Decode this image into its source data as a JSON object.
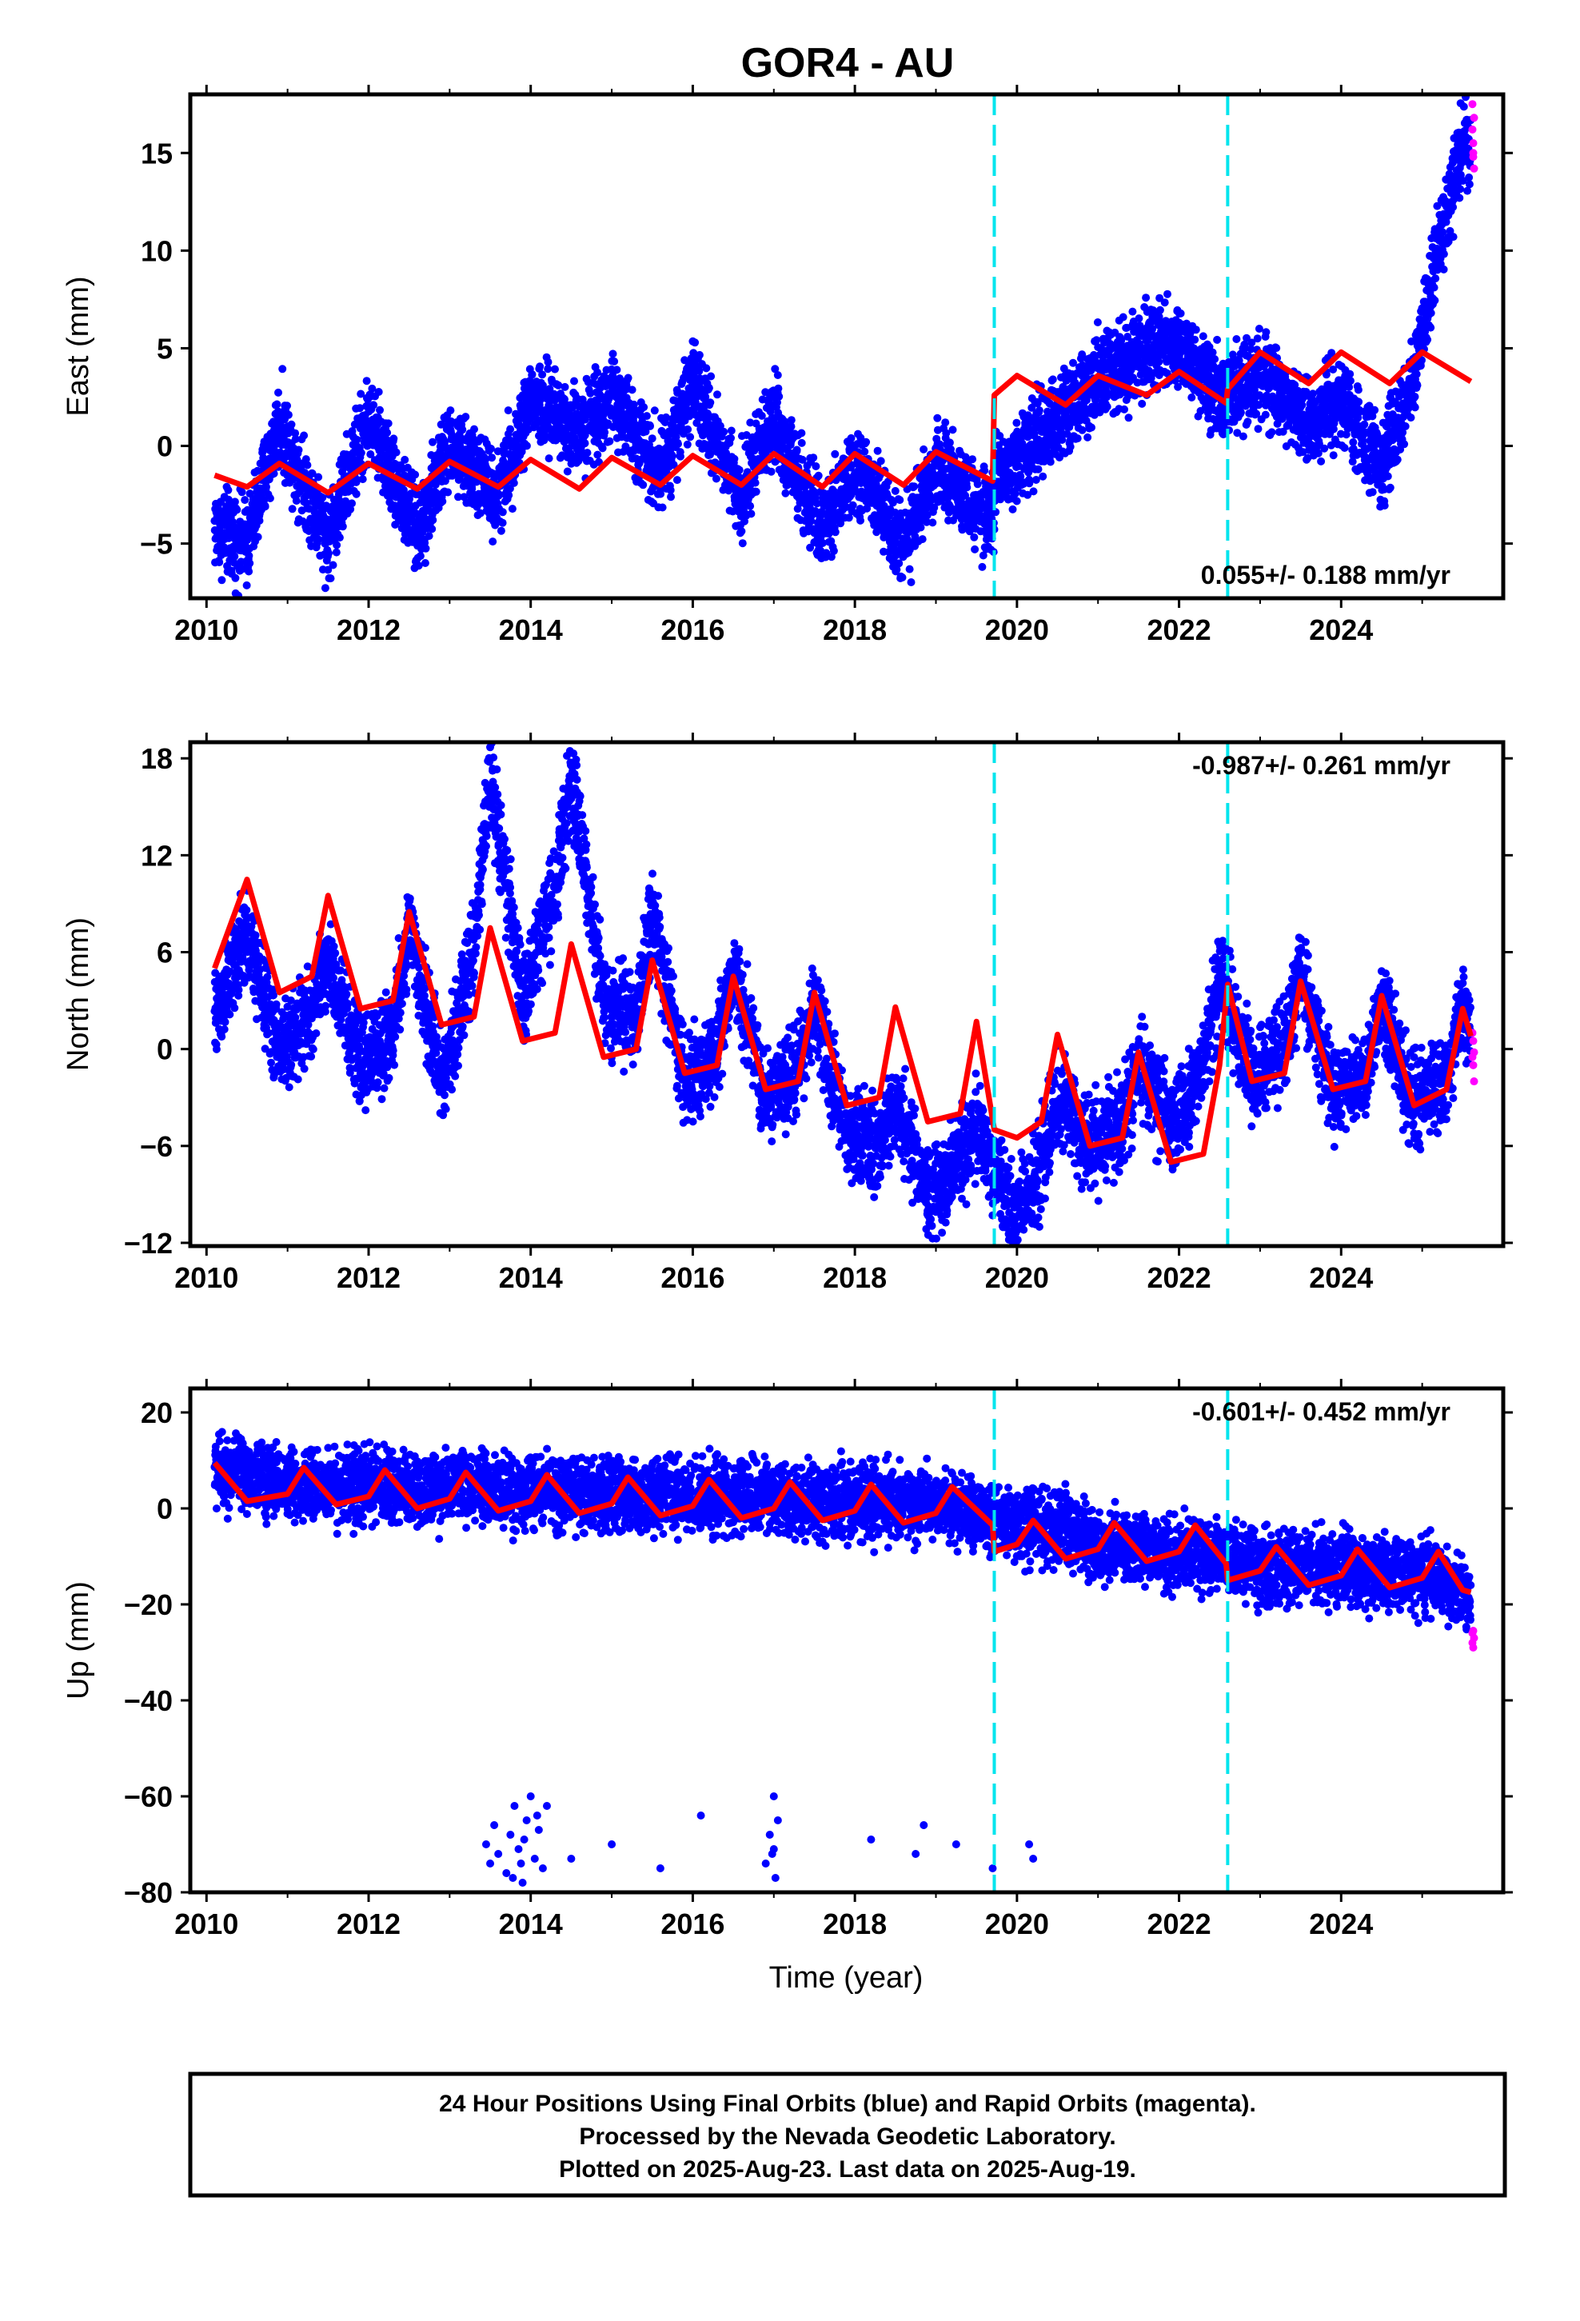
{
  "title": "GOR4 - AU",
  "xlabel": "Time (year)",
  "footer": {
    "line1": "24 Hour Positions Using Final Orbits (blue) and Rapid Orbits (magenta).",
    "line2": "Processed by the Nevada Geodetic Laboratory.",
    "line3": "Plotted on 2025-Aug-23. Last data on 2025-Aug-19."
  },
  "colors": {
    "final": "#0000ff",
    "rapid": "#ff00ff",
    "model": "#ff0000",
    "steps": "#00e5ee"
  },
  "chart_data": [
    {
      "type": "scatter",
      "ylabel": "East (mm)",
      "xlim": [
        2009.8,
        2026.0
      ],
      "ylim": [
        -7.8,
        18.0
      ],
      "xticks": [
        "2010",
        "2012",
        "2014",
        "2016",
        "2018",
        "2020",
        "2022",
        "2024"
      ],
      "yticks": [
        "−5",
        "0",
        "5",
        "10",
        "15"
      ],
      "rate_text": "0.055+/- 0.188 mm/yr",
      "rate_position": "bottom-right",
      "steps": [
        2019.72,
        2022.6
      ],
      "model": {
        "name": "model",
        "points": [
          [
            2010.1,
            -1.5
          ],
          [
            2010.5,
            -2.1
          ],
          [
            2010.9,
            -0.9
          ],
          [
            2011.5,
            -2.4
          ],
          [
            2012.0,
            -0.9
          ],
          [
            2012.6,
            -2.2
          ],
          [
            2013.0,
            -0.8
          ],
          [
            2013.6,
            -2.1
          ],
          [
            2014.0,
            -0.7
          ],
          [
            2014.6,
            -2.2
          ],
          [
            2015.0,
            -0.6
          ],
          [
            2015.6,
            -2.0
          ],
          [
            2016.0,
            -0.5
          ],
          [
            2016.6,
            -2.0
          ],
          [
            2017.0,
            -0.4
          ],
          [
            2017.6,
            -2.1
          ],
          [
            2018.0,
            -0.4
          ],
          [
            2018.6,
            -2.0
          ],
          [
            2019.0,
            -0.3
          ],
          [
            2019.7,
            -1.8
          ],
          [
            2019.72,
            2.6
          ],
          [
            2020.0,
            3.6
          ],
          [
            2020.6,
            2.1
          ],
          [
            2021.0,
            3.6
          ],
          [
            2021.6,
            2.6
          ],
          [
            2022.0,
            3.8
          ],
          [
            2022.58,
            2.2
          ],
          [
            2022.6,
            2.9
          ],
          [
            2023.0,
            4.8
          ],
          [
            2023.6,
            3.2
          ],
          [
            2024.0,
            4.8
          ],
          [
            2024.6,
            3.2
          ],
          [
            2025.0,
            4.8
          ],
          [
            2025.6,
            3.3
          ]
        ]
      },
      "final_envelope": [
        [
          2010.1,
          -4.2
        ],
        [
          2010.5,
          -5.0
        ],
        [
          2010.9,
          1.2
        ],
        [
          2011.5,
          -4.8
        ],
        [
          2012.0,
          1.5
        ],
        [
          2012.6,
          -4.5
        ],
        [
          2013.0,
          0.0
        ],
        [
          2013.6,
          -2.5
        ],
        [
          2014.0,
          2.3
        ],
        [
          2014.6,
          0.8
        ],
        [
          2015.0,
          2.5
        ],
        [
          2015.6,
          -1.2
        ],
        [
          2016.0,
          3.0
        ],
        [
          2016.6,
          -2.5
        ],
        [
          2017.0,
          1.5
        ],
        [
          2017.6,
          -4.5
        ],
        [
          2018.0,
          -1.0
        ],
        [
          2018.6,
          -5.0
        ],
        [
          2019.0,
          -1.0
        ],
        [
          2019.7,
          -4.0
        ],
        [
          2019.75,
          -1.5
        ],
        [
          2020.5,
          1.5
        ],
        [
          2021.0,
          3.5
        ],
        [
          2021.5,
          4.8
        ],
        [
          2022.0,
          5.2
        ],
        [
          2022.5,
          2.5
        ],
        [
          2023.0,
          3.5
        ],
        [
          2023.6,
          1.0
        ],
        [
          2024.0,
          2.5
        ],
        [
          2024.5,
          -1.2
        ],
        [
          2024.9,
          3.5
        ],
        [
          2025.2,
          10.0
        ],
        [
          2025.5,
          15.5
        ],
        [
          2025.6,
          15.0
        ]
      ],
      "final_spread": 2.0,
      "rapid": [
        [
          2025.62,
          17.5
        ],
        [
          2025.62,
          16.2
        ],
        [
          2025.63,
          15.5
        ],
        [
          2025.63,
          14.8
        ],
        [
          2025.64,
          14.2
        ],
        [
          2025.64,
          16.8
        ],
        [
          2025.63,
          15.0
        ]
      ]
    },
    {
      "type": "scatter",
      "ylabel": "North (mm)",
      "xlim": [
        2009.8,
        2026.0
      ],
      "ylim": [
        -12.2,
        19.0
      ],
      "xticks": [
        "2010",
        "2012",
        "2014",
        "2016",
        "2018",
        "2020",
        "2022",
        "2024"
      ],
      "yticks": [
        "−12",
        "−6",
        "0",
        "6",
        "12",
        "18"
      ],
      "rate_text": "-0.987+/- 0.261 mm/yr",
      "rate_position": "top-right",
      "steps": [
        2019.72,
        2022.6
      ],
      "model": {
        "name": "model",
        "points": [
          [
            2010.1,
            5.0
          ],
          [
            2010.5,
            10.5
          ],
          [
            2010.9,
            3.5
          ],
          [
            2011.3,
            4.5
          ],
          [
            2011.5,
            9.5
          ],
          [
            2011.9,
            2.5
          ],
          [
            2012.3,
            3.0
          ],
          [
            2012.5,
            8.5
          ],
          [
            2012.9,
            1.5
          ],
          [
            2013.3,
            2.0
          ],
          [
            2013.5,
            7.5
          ],
          [
            2013.9,
            0.5
          ],
          [
            2014.3,
            1.0
          ],
          [
            2014.5,
            6.5
          ],
          [
            2014.9,
            -0.5
          ],
          [
            2015.3,
            0.0
          ],
          [
            2015.5,
            5.5
          ],
          [
            2015.9,
            -1.5
          ],
          [
            2016.3,
            -1.0
          ],
          [
            2016.5,
            4.5
          ],
          [
            2016.9,
            -2.5
          ],
          [
            2017.3,
            -2.0
          ],
          [
            2017.5,
            3.5
          ],
          [
            2017.9,
            -3.5
          ],
          [
            2018.3,
            -3.0
          ],
          [
            2018.5,
            2.6
          ],
          [
            2018.9,
            -4.5
          ],
          [
            2019.3,
            -4.0
          ],
          [
            2019.5,
            1.7
          ],
          [
            2019.72,
            -5.0
          ],
          [
            2020.0,
            -5.5
          ],
          [
            2020.3,
            -4.5
          ],
          [
            2020.5,
            0.9
          ],
          [
            2020.9,
            -6.0
          ],
          [
            2021.3,
            -5.5
          ],
          [
            2021.5,
            -0.2
          ],
          [
            2021.9,
            -7.0
          ],
          [
            2022.3,
            -6.5
          ],
          [
            2022.5,
            -1.0
          ],
          [
            2022.6,
            4.0
          ],
          [
            2022.9,
            -2.0
          ],
          [
            2023.3,
            -1.5
          ],
          [
            2023.5,
            4.2
          ],
          [
            2023.9,
            -2.5
          ],
          [
            2024.3,
            -2.0
          ],
          [
            2024.5,
            3.3
          ],
          [
            2024.9,
            -3.5
          ],
          [
            2025.3,
            -2.5
          ],
          [
            2025.5,
            2.5
          ],
          [
            2025.6,
            0.8
          ]
        ]
      },
      "final_envelope": [
        [
          2010.1,
          2.0
        ],
        [
          2010.5,
          7.0
        ],
        [
          2010.9,
          0.0
        ],
        [
          2011.3,
          2.0
        ],
        [
          2011.5,
          5.5
        ],
        [
          2011.9,
          -1.0
        ],
        [
          2012.3,
          1.0
        ],
        [
          2012.5,
          7.5
        ],
        [
          2012.9,
          -2.0
        ],
        [
          2013.3,
          6.0
        ],
        [
          2013.5,
          17.0
        ],
        [
          2013.9,
          3.0
        ],
        [
          2014.3,
          10.0
        ],
        [
          2014.5,
          17.0
        ],
        [
          2014.9,
          3.0
        ],
        [
          2015.3,
          2.0
        ],
        [
          2015.5,
          8.5
        ],
        [
          2015.9,
          -2.0
        ],
        [
          2016.3,
          0.0
        ],
        [
          2016.5,
          5.0
        ],
        [
          2016.9,
          -3.0
        ],
        [
          2017.3,
          -1.5
        ],
        [
          2017.5,
          2.5
        ],
        [
          2017.9,
          -5.0
        ],
        [
          2018.3,
          -6.5
        ],
        [
          2018.5,
          -3.0
        ],
        [
          2018.9,
          -9.0
        ],
        [
          2019.3,
          -7.0
        ],
        [
          2019.5,
          -5.0
        ],
        [
          2020.0,
          -10.5
        ],
        [
          2020.3,
          -7.0
        ],
        [
          2020.5,
          -3.0
        ],
        [
          2020.9,
          -6.0
        ],
        [
          2021.3,
          -4.5
        ],
        [
          2021.5,
          -1.0
        ],
        [
          2021.9,
          -5.0
        ],
        [
          2022.3,
          -1.0
        ],
        [
          2022.5,
          4.5
        ],
        [
          2022.9,
          -1.5
        ],
        [
          2023.3,
          0.0
        ],
        [
          2023.5,
          4.5
        ],
        [
          2023.9,
          -2.5
        ],
        [
          2024.3,
          -2.0
        ],
        [
          2024.5,
          3.0
        ],
        [
          2024.9,
          -3.5
        ],
        [
          2025.3,
          -2.0
        ],
        [
          2025.5,
          3.0
        ],
        [
          2025.6,
          1.0
        ]
      ],
      "final_spread": 2.6,
      "rapid": [
        [
          2025.62,
          1.0
        ],
        [
          2025.62,
          -0.5
        ],
        [
          2025.63,
          -1.0
        ],
        [
          2025.64,
          -2.0
        ],
        [
          2025.64,
          -0.2
        ],
        [
          2025.63,
          0.5
        ]
      ]
    },
    {
      "type": "scatter",
      "ylabel": "Up (mm)",
      "xlim": [
        2009.8,
        2026.0
      ],
      "ylim": [
        -80,
        25
      ],
      "xticks": [
        "2010",
        "2012",
        "2014",
        "2016",
        "2018",
        "2020",
        "2022",
        "2024"
      ],
      "yticks": [
        "−80",
        "−60",
        "−40",
        "−20",
        "0",
        "20"
      ],
      "rate_text": "-0.601+/- 0.452 mm/yr",
      "rate_position": "top-right",
      "steps": [
        2019.72,
        2022.6
      ],
      "model": {
        "name": "model",
        "points": [
          [
            2010.1,
            9.5
          ],
          [
            2010.5,
            1.5
          ],
          [
            2011.0,
            3.0
          ],
          [
            2011.2,
            8.5
          ],
          [
            2011.6,
            0.8
          ],
          [
            2012.0,
            2.5
          ],
          [
            2012.2,
            8.0
          ],
          [
            2012.6,
            0.0
          ],
          [
            2013.0,
            2.0
          ],
          [
            2013.2,
            7.5
          ],
          [
            2013.6,
            -0.5
          ],
          [
            2014.0,
            1.5
          ],
          [
            2014.2,
            7.0
          ],
          [
            2014.6,
            -1.0
          ],
          [
            2015.0,
            1.0
          ],
          [
            2015.2,
            6.5
          ],
          [
            2015.6,
            -1.5
          ],
          [
            2016.0,
            0.5
          ],
          [
            2016.2,
            6.0
          ],
          [
            2016.6,
            -2.0
          ],
          [
            2017.0,
            0.0
          ],
          [
            2017.2,
            5.5
          ],
          [
            2017.6,
            -2.5
          ],
          [
            2018.0,
            -0.5
          ],
          [
            2018.2,
            5.0
          ],
          [
            2018.6,
            -3.0
          ],
          [
            2019.0,
            -1.0
          ],
          [
            2019.2,
            4.5
          ],
          [
            2019.7,
            -3.5
          ],
          [
            2019.72,
            -9.0
          ],
          [
            2020.0,
            -7.5
          ],
          [
            2020.2,
            -2.5
          ],
          [
            2020.6,
            -10.5
          ],
          [
            2021.0,
            -8.5
          ],
          [
            2021.2,
            -3.0
          ],
          [
            2021.6,
            -11.0
          ],
          [
            2022.0,
            -9.0
          ],
          [
            2022.2,
            -3.5
          ],
          [
            2022.58,
            -11.5
          ],
          [
            2022.6,
            -15.0
          ],
          [
            2023.0,
            -13.0
          ],
          [
            2023.2,
            -8.0
          ],
          [
            2023.6,
            -16.0
          ],
          [
            2024.0,
            -14.0
          ],
          [
            2024.2,
            -8.5
          ],
          [
            2024.6,
            -16.5
          ],
          [
            2025.0,
            -14.5
          ],
          [
            2025.2,
            -9.0
          ],
          [
            2025.5,
            -17.0
          ],
          [
            2025.6,
            -17.5
          ]
        ]
      },
      "final_envelope": [
        [
          2010.1,
          8.0
        ],
        [
          2011.0,
          5.0
        ],
        [
          2012.0,
          4.5
        ],
        [
          2013.0,
          4.0
        ],
        [
          2014.0,
          3.5
        ],
        [
          2015.0,
          3.0
        ],
        [
          2016.0,
          2.5
        ],
        [
          2017.0,
          2.0
        ],
        [
          2018.0,
          1.5
        ],
        [
          2019.0,
          1.0
        ],
        [
          2019.7,
          -2.0
        ],
        [
          2020.0,
          -3.0
        ],
        [
          2020.6,
          -4.0
        ],
        [
          2021.0,
          -8.0
        ],
        [
          2022.0,
          -9.0
        ],
        [
          2022.6,
          -10.0
        ],
        [
          2023.0,
          -12.0
        ],
        [
          2024.0,
          -13.0
        ],
        [
          2025.0,
          -14.0
        ],
        [
          2025.6,
          -18.0
        ]
      ],
      "final_spread": 7.0,
      "outliers": [
        [
          2013.45,
          -70
        ],
        [
          2013.5,
          -74
        ],
        [
          2013.55,
          -66
        ],
        [
          2013.6,
          -72
        ],
        [
          2013.7,
          -76
        ],
        [
          2013.75,
          -68
        ],
        [
          2013.8,
          -62
        ],
        [
          2013.85,
          -71
        ],
        [
          2013.9,
          -78
        ],
        [
          2013.95,
          -65
        ],
        [
          2014.0,
          -60
        ],
        [
          2014.05,
          -73
        ],
        [
          2014.1,
          -67
        ],
        [
          2014.15,
          -75
        ],
        [
          2014.2,
          -62
        ],
        [
          2013.78,
          -77
        ],
        [
          2013.88,
          -74
        ],
        [
          2013.92,
          -69
        ],
        [
          2014.08,
          -64
        ],
        [
          2014.5,
          -73
        ],
        [
          2015.0,
          -70
        ],
        [
          2015.6,
          -75
        ],
        [
          2016.1,
          -64
        ],
        [
          2016.9,
          -74
        ],
        [
          2016.95,
          -68
        ],
        [
          2017.0,
          -60
        ],
        [
          2017.0,
          -71
        ],
        [
          2017.02,
          -77
        ],
        [
          2017.05,
          -65
        ],
        [
          2016.98,
          -72
        ],
        [
          2018.2,
          -69
        ],
        [
          2018.75,
          -72
        ],
        [
          2018.85,
          -66
        ],
        [
          2019.25,
          -70
        ],
        [
          2019.7,
          -75
        ],
        [
          2020.15,
          -70
        ],
        [
          2020.2,
          -73
        ]
      ],
      "rapid": [
        [
          2025.62,
          -26.0
        ],
        [
          2025.62,
          -28.0
        ],
        [
          2025.63,
          -29.0
        ],
        [
          2025.64,
          -27.0
        ],
        [
          2025.63,
          -25.5
        ]
      ]
    }
  ]
}
